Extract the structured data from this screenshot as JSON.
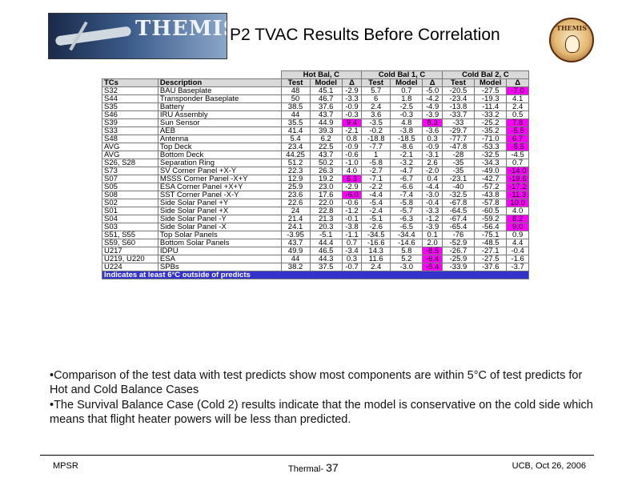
{
  "logo": {
    "text": "THEMIS"
  },
  "title": "P2 TVAC Results Before Correlation",
  "emblem": {
    "text": "THEMIS"
  },
  "table": {
    "groups": [
      "Hot Bal, C",
      "Cold Bal 1, C",
      "Cold Bal 2, C"
    ],
    "columns": [
      "TCs",
      "Description",
      "Test",
      "Model",
      "Δ",
      "Test",
      "Model",
      "Δ",
      "Test",
      "Model",
      "Δ"
    ],
    "rows": [
      {
        "tc": "S32",
        "desc": "BAU Baseplate",
        "v": [
          "48",
          "45.1",
          "-2.9",
          "5.7",
          "0.7",
          "-5.0",
          "-20.5",
          "-27.5",
          "-7.0"
        ],
        "hl": [
          8
        ]
      },
      {
        "tc": "S44",
        "desc": "Transponder Baseplate",
        "v": [
          "50",
          "46.7",
          "-3.3",
          "6",
          "1.8",
          "-4.2",
          "-23.4",
          "-19.3",
          "4.1"
        ],
        "hl": []
      },
      {
        "tc": "S35",
        "desc": "Battery",
        "v": [
          "38.5",
          "37.6",
          "-0.9",
          "2.4",
          "-2.5",
          "-4.9",
          "-13.8",
          "-11.4",
          "2.4"
        ],
        "hl": []
      },
      {
        "tc": "S46",
        "desc": "IRU Assembly",
        "v": [
          "44",
          "43.7",
          "-0.3",
          "3.6",
          "-0.3",
          "-3.9",
          "-33.7",
          "-33.2",
          "0.5"
        ],
        "hl": []
      },
      {
        "tc": "S39",
        "desc": "Sun Sensor",
        "v": [
          "35.5",
          "44.9",
          "9.4",
          "-3.5",
          "4.8",
          "8.3",
          "-33",
          "-25.2",
          "7.8"
        ],
        "hl": [
          2,
          5,
          8
        ]
      },
      {
        "tc": "S33",
        "desc": "AEB",
        "v": [
          "41.4",
          "39.3",
          "-2.1",
          "-0.2",
          "-3.8",
          "-3.6",
          "-29.7",
          "-35.2",
          "-5.5"
        ],
        "hl": [
          8
        ]
      },
      {
        "tc": "S48",
        "desc": "Antenna",
        "v": [
          "5.4",
          "6.2",
          "0.8",
          "-18.8",
          "-18.5",
          "0.3",
          "-77.7",
          "-71.0",
          "6.7"
        ],
        "hl": [
          8
        ]
      },
      {
        "tc": "AVG",
        "desc": "Top Deck",
        "v": [
          "23.4",
          "22.5",
          "-0.9",
          "-7.7",
          "-8.6",
          "-0.9",
          "-47.8",
          "-53.3",
          "-5.5"
        ],
        "hl": [
          8
        ]
      },
      {
        "tc": "AVG",
        "desc": "Bottom Deck",
        "v": [
          "44.25",
          "43.7",
          "-0.6",
          "1",
          "-2.1",
          "-3.1",
          "-28",
          "-32.5",
          "-4.5"
        ],
        "hl": []
      },
      {
        "tc": "S26, S28",
        "desc": "Separation Ring",
        "v": [
          "51.2",
          "50.2",
          "-1.0",
          "-5.8",
          "-3.2",
          "2.6",
          "-35",
          "-34.3",
          "0.7"
        ],
        "hl": []
      },
      {
        "tc": "S73",
        "desc": "SV Corner Panel +X-Y",
        "v": [
          "22.3",
          "26.3",
          "4.0",
          "-2.7",
          "-4.7",
          "-2.0",
          "-35",
          "-49.0",
          "-14.0"
        ],
        "hl": [
          8
        ]
      },
      {
        "tc": "S07",
        "desc": "MSSS Corner Panel -X+Y",
        "v": [
          "12.9",
          "19.2",
          "6.3",
          "-7.1",
          "-6.7",
          "0.4",
          "-23.1",
          "-42.7",
          "-19.6"
        ],
        "hl": [
          2,
          8
        ]
      },
      {
        "tc": "S05",
        "desc": "ESA Corner Panel +X+Y",
        "v": [
          "25.9",
          "23.0",
          "-2.9",
          "-2.2",
          "-6.6",
          "-4.4",
          "-40",
          "-57.2",
          "-17.2"
        ],
        "hl": [
          8
        ]
      },
      {
        "tc": "S08",
        "desc": "SST Corner Panel -X-Y",
        "v": [
          "23.6",
          "17.6",
          "-6.0",
          "-4.4",
          "-7.4",
          "-3.0",
          "-32.5",
          "-43.8",
          "-11.3"
        ],
        "hl": [
          2,
          8
        ]
      },
      {
        "tc": "S02",
        "desc": "Side Solar Panel +Y",
        "v": [
          "22.6",
          "22.0",
          "-0.6",
          "-5.4",
          "-5.8",
          "-0.4",
          "-67.8",
          "-57.8",
          "10.0"
        ],
        "hl": [
          8
        ]
      },
      {
        "tc": "S01",
        "desc": "Side Solar Panel +X",
        "v": [
          "24",
          "22.8",
          "-1.2",
          "-2.4",
          "-5.7",
          "-3.3",
          "-64.5",
          "-60.5",
          "4.0"
        ],
        "hl": []
      },
      {
        "tc": "S04",
        "desc": "Side Solar Panel -Y",
        "v": [
          "21.4",
          "21.3",
          "-0.1",
          "-5.1",
          "-6.3",
          "-1.2",
          "-67.4",
          "-59.2",
          "8.2"
        ],
        "hl": [
          8
        ]
      },
      {
        "tc": "S03",
        "desc": "Side Solar Panel -X",
        "v": [
          "24.1",
          "20.3",
          "-3.8",
          "-2.6",
          "-6.5",
          "-3.9",
          "-65.4",
          "-56.4",
          "9.0"
        ],
        "hl": [
          8
        ]
      },
      {
        "tc": "S51, S55",
        "desc": "Top Solar Panels",
        "v": [
          "-3.95",
          "-5.1",
          "-1.1",
          "-34.5",
          "-34.4",
          "0.1",
          "-76",
          "-75.1",
          "0.9"
        ],
        "hl": []
      },
      {
        "tc": "S59, S60",
        "desc": "Bottom Solar Panels",
        "v": [
          "43.7",
          "44.4",
          "0.7",
          "-16.6",
          "-14.6",
          "2.0",
          "-52.9",
          "-48.5",
          "4.4"
        ],
        "hl": []
      },
      {
        "tc": "U217",
        "desc": "IDPU",
        "v": [
          "49.9",
          "46.5",
          "-3.4",
          "14.3",
          "5.8",
          "-8.5",
          "-26.7",
          "-27.1",
          "-0.4"
        ],
        "hl": [
          5
        ]
      },
      {
        "tc": "U219, U220",
        "desc": "ESA",
        "v": [
          "44",
          "44.3",
          "0.3",
          "11.6",
          "5.2",
          "-6.4",
          "-25.9",
          "-27.5",
          "-1.6"
        ],
        "hl": [
          5
        ]
      },
      {
        "tc": "U224",
        "desc": "SPBs",
        "v": [
          "38.2",
          "37.5",
          "-0.7",
          "2.4",
          "-3.0",
          "-5.4",
          "-33.9",
          "-37.6",
          "-3.7"
        ],
        "hl": [
          5
        ]
      }
    ],
    "note": "Indicates at least 6°C outside of predicts"
  },
  "bullets": [
    "•Comparison of the test data with test predicts show most components are within 5°C of test predicts for Hot and Cold Balance Cases",
    "•The Survival Balance Case (Cold 2) results indicate that the model is conservative on the cold side which means that flight heater powers will be less than predicted."
  ],
  "footer": {
    "left": "MPSR",
    "center_label": "Thermal-",
    "page": "37",
    "right": "UCB, Oct 26, 2006"
  }
}
